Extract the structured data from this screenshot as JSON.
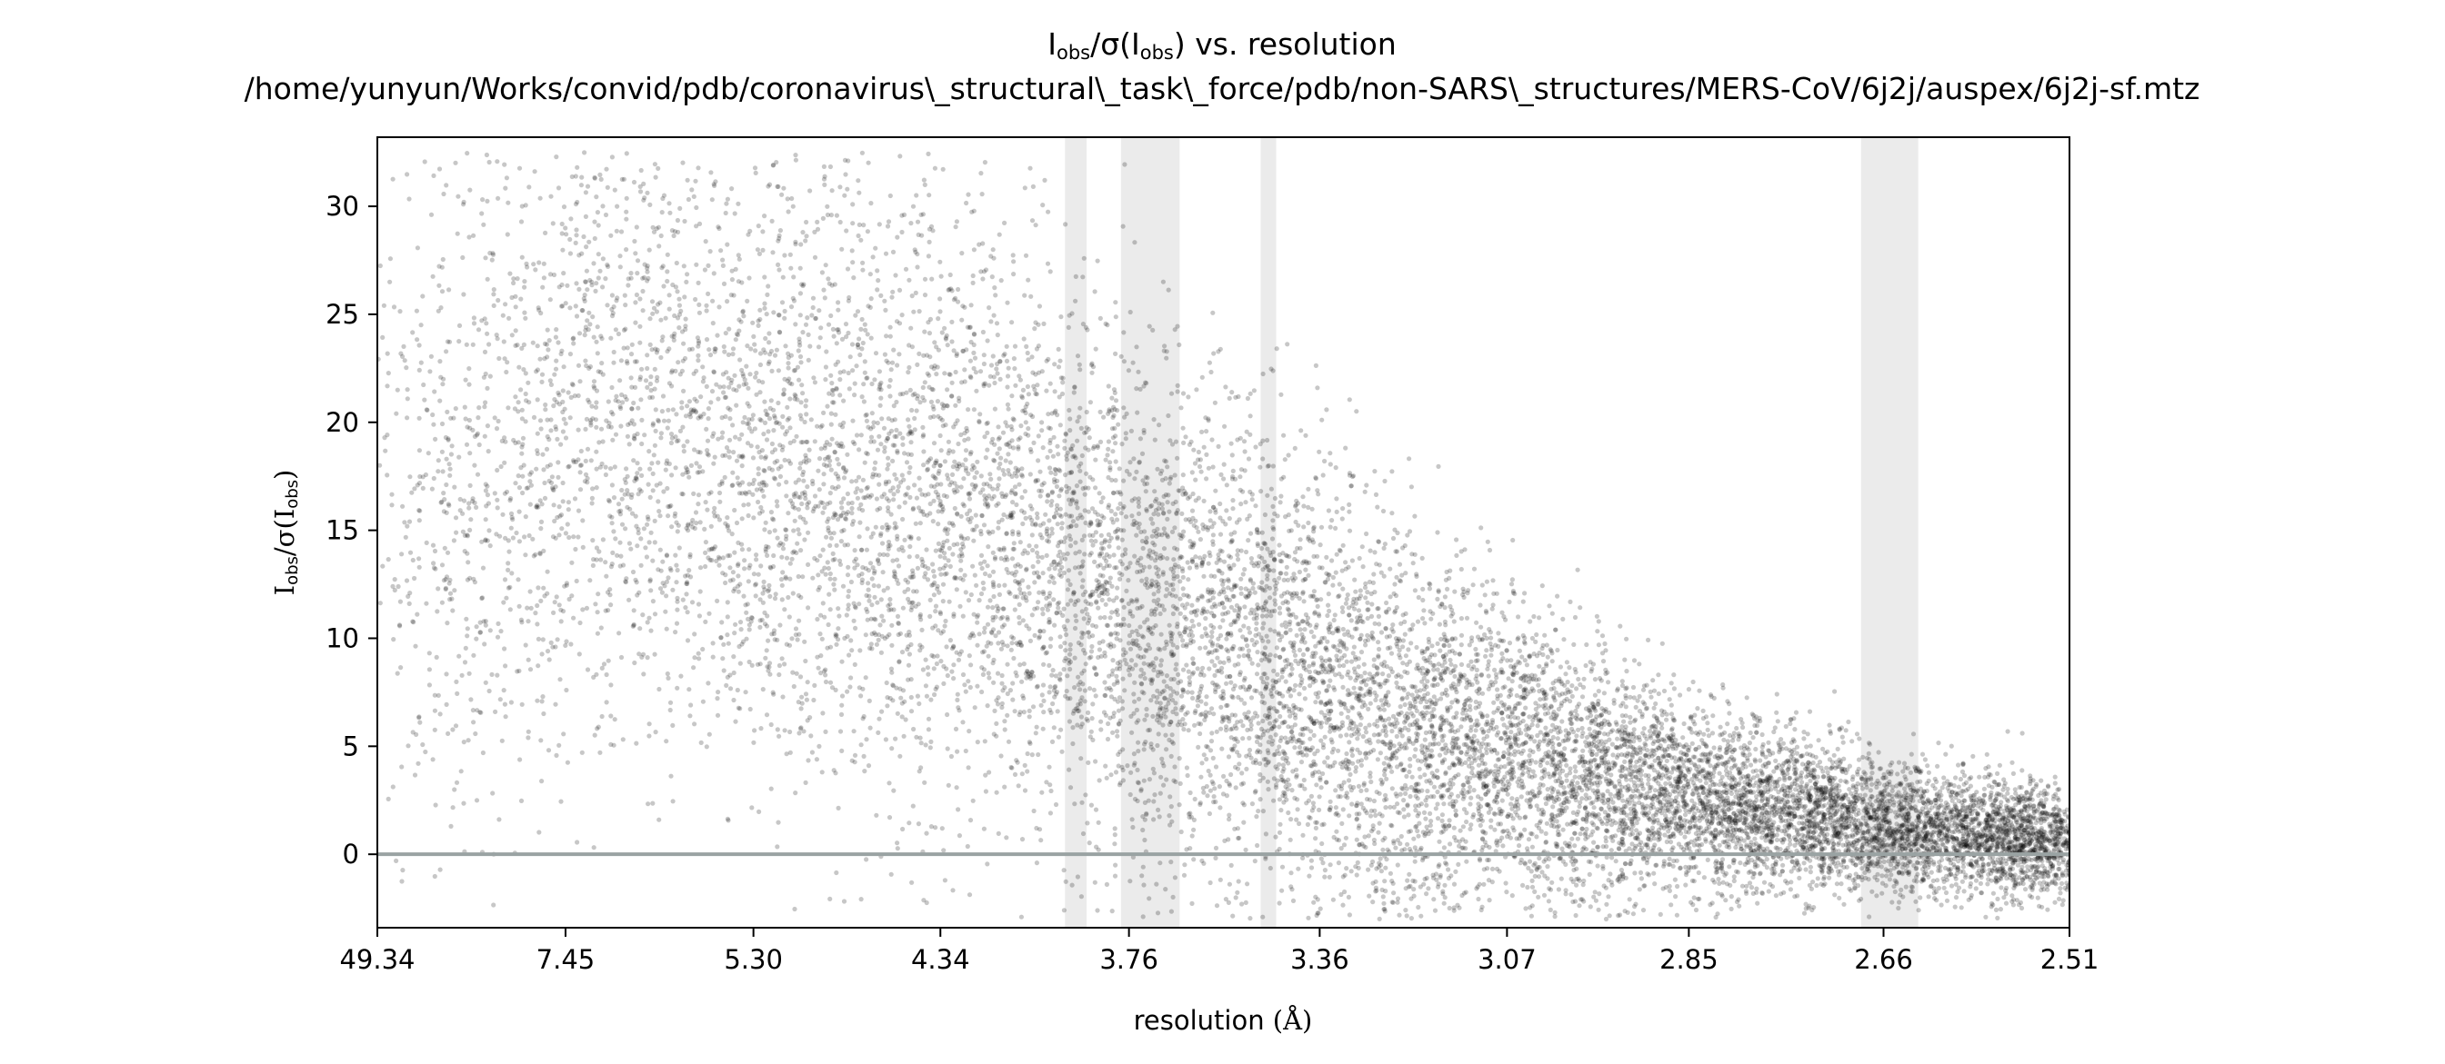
{
  "chart_data": {
    "type": "scatter",
    "title": "Iobs/σ(Iobs) vs. resolution",
    "title_main": "I",
    "title_sub": "obs",
    "title_mid": "/σ(I",
    "title_sub2": "obs",
    "title_end": ") vs. resolution",
    "subtitle": "/home/yunyun/Works/convid/pdb/coronavirus\\_structural\\_task\\_force/pdb/non-SARS\\_structures/MERS-CoV/6j2j/auspex/6j2j-sf.mtz",
    "xlabel": "resolution (Å)",
    "xlabel_main": "resolution ",
    "xlabel_unit": "(Å)",
    "ylabel": "Iobs/σ(Iobs)",
    "ylabel_main": "I",
    "ylabel_sub": "obs",
    "ylabel_mid": "/σ(I",
    "ylabel_sub2": "obs",
    "ylabel_end": ")",
    "x_scale": "1/d^2 (reciprocal resolution squared), labels in Å",
    "x_ticks": [
      "49.34",
      "7.45",
      "5.30",
      "4.34",
      "3.76",
      "3.36",
      "3.07",
      "2.85",
      "2.66",
      "2.51"
    ],
    "x_tick_values_A": [
      49.34,
      7.45,
      5.3,
      4.34,
      3.76,
      3.36,
      3.07,
      2.85,
      2.66,
      2.51
    ],
    "xlim_A": [
      49.34,
      2.51
    ],
    "y_ticks": [
      0,
      5,
      10,
      15,
      20,
      25,
      30
    ],
    "ylim": [
      -3.4,
      33.2
    ],
    "grid": false,
    "legend": "none",
    "zero_line": {
      "y": 0,
      "color": "#9aa3a3"
    },
    "ice_ring_bands_A": [
      [
        3.93,
        3.87
      ],
      [
        3.78,
        3.64
      ],
      [
        3.47,
        3.44
      ],
      [
        2.68,
        2.63
      ]
    ],
    "ice_ring_color": "#ebebeb",
    "point_color": "#000000",
    "point_alpha": 0.22,
    "density_profile": {
      "description": "approximate mean and spread of Iobs/sigma per resolution shell",
      "resolution_A": [
        49.34,
        10.0,
        7.45,
        5.3,
        4.34,
        3.76,
        3.36,
        3.07,
        2.85,
        2.66,
        2.51
      ],
      "mean": [
        16,
        17,
        20,
        18,
        16,
        12,
        8,
        4.5,
        2.5,
        1.3,
        0.6
      ],
      "spread": [
        8,
        8,
        7,
        7,
        7,
        6,
        5,
        3.5,
        2.2,
        1.5,
        1.2
      ]
    }
  }
}
